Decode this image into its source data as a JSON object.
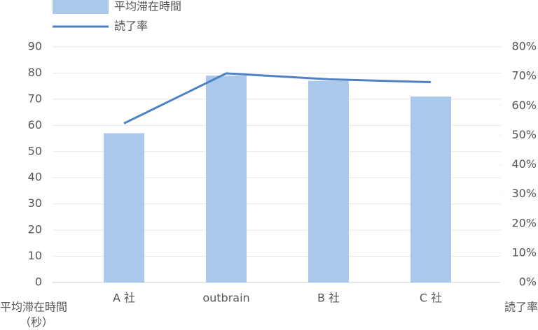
{
  "chart_data": {
    "type": "bar-line",
    "categories": [
      "A 社",
      "outbrain",
      "B 社",
      "C 社"
    ],
    "series": [
      {
        "name": "平均滞在時間",
        "type": "bar",
        "color": "#a9c8ea",
        "values": [
          57,
          79,
          77,
          71
        ]
      },
      {
        "name": "読了率",
        "type": "line",
        "axis": "y2",
        "color": "#4f81c7",
        "values": [
          54,
          71,
          69,
          68
        ]
      }
    ],
    "ylim": [
      0,
      90
    ],
    "yticks": [
      0,
      10,
      20,
      30,
      40,
      50,
      60,
      70,
      80,
      90
    ],
    "y2lim": [
      0,
      80
    ],
    "y2ticks": [
      {
        "value": 0,
        "label": "0%"
      },
      {
        "value": 10,
        "label": "10%"
      },
      {
        "value": 20,
        "label": "20%"
      },
      {
        "value": 30,
        "label": "30%"
      },
      {
        "value": 40,
        "label": "40%"
      },
      {
        "value": 50,
        "label": "50%"
      },
      {
        "value": 60,
        "label": "60%"
      },
      {
        "value": 70,
        "label": "70%"
      },
      {
        "value": 80,
        "label": "80%"
      }
    ],
    "ylabel": [
      "平均滞在時間",
      "（秒）"
    ],
    "y2label": "読了率",
    "grid": true,
    "legend": "top-left"
  }
}
